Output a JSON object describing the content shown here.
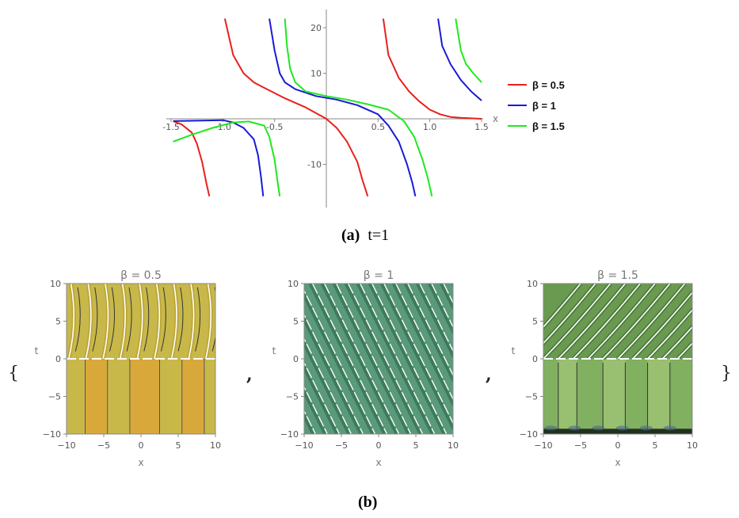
{
  "caption_a": {
    "label": "(a)",
    "text": "t=1"
  },
  "caption_b": {
    "label": "(b)"
  },
  "braces": {
    "open": "{",
    "close": "}",
    "separator": ","
  },
  "chart_data": [
    {
      "type": "line",
      "xlabel": "x",
      "ylabel": "",
      "xlim": [
        -1.5,
        1.5
      ],
      "ylim": [
        -18,
        22
      ],
      "xticks": [
        -1.5,
        -1.0,
        -0.5,
        0.5,
        1.0,
        1.5
      ],
      "xtick_labels": [
        "-1.5",
        "-1.0",
        "-0.5",
        "0.5",
        "1.0",
        "1.5"
      ],
      "yticks": [
        -10,
        10,
        20
      ],
      "ytick_labels": [
        "-10",
        "10",
        "20"
      ],
      "legend_position": "right",
      "series": [
        {
          "name": "β = 0.5",
          "color": "#e8201a",
          "values_description": "tangent-like branches",
          "branches": [
            [
              [
                -1.48,
                -0.5
              ],
              [
                -1.4,
                -1.2
              ],
              [
                -1.3,
                -3.0
              ],
              [
                -1.25,
                -5.5
              ],
              [
                -1.2,
                -9.5
              ],
              [
                -1.16,
                -14
              ],
              [
                -1.13,
                -17
              ]
            ],
            [
              [
                -0.98,
                22
              ],
              [
                -0.9,
                14
              ],
              [
                -0.8,
                10
              ],
              [
                -0.7,
                8
              ],
              [
                -0.6,
                6.8
              ],
              [
                -0.4,
                4.5
              ],
              [
                -0.2,
                2.5
              ],
              [
                0,
                0
              ],
              [
                0.1,
                -2
              ],
              [
                0.2,
                -5
              ],
              [
                0.3,
                -9.5
              ],
              [
                0.35,
                -13.5
              ],
              [
                0.4,
                -17
              ]
            ],
            [
              [
                0.55,
                22
              ],
              [
                0.6,
                14
              ],
              [
                0.7,
                9
              ],
              [
                0.8,
                6
              ],
              [
                0.9,
                3.8
              ],
              [
                1.0,
                2
              ],
              [
                1.1,
                1
              ],
              [
                1.2,
                0.4
              ],
              [
                1.3,
                0.2
              ],
              [
                1.5,
                0
              ]
            ]
          ]
        },
        {
          "name": "β = 1",
          "color": "#1a1ad6",
          "values_description": "tangent-like branches",
          "branches": [
            [
              [
                -1.48,
                -0.5
              ],
              [
                -1.2,
                -0.4
              ],
              [
                -1.0,
                -0.3
              ],
              [
                -0.9,
                -0.8
              ],
              [
                -0.8,
                -2
              ],
              [
                -0.7,
                -4.5
              ],
              [
                -0.66,
                -8
              ],
              [
                -0.63,
                -13
              ],
              [
                -0.61,
                -17
              ]
            ],
            [
              [
                -0.55,
                22
              ],
              [
                -0.5,
                15
              ],
              [
                -0.45,
                10
              ],
              [
                -0.4,
                8
              ],
              [
                -0.3,
                6.5
              ],
              [
                -0.1,
                5
              ],
              [
                0.1,
                4.2
              ],
              [
                0.3,
                3
              ],
              [
                0.5,
                1
              ],
              [
                0.6,
                -1.5
              ],
              [
                0.7,
                -5
              ],
              [
                0.78,
                -10
              ],
              [
                0.83,
                -14
              ],
              [
                0.86,
                -17
              ]
            ],
            [
              [
                1.08,
                22
              ],
              [
                1.12,
                16
              ],
              [
                1.2,
                12
              ],
              [
                1.3,
                8.5
              ],
              [
                1.4,
                6
              ],
              [
                1.5,
                4
              ]
            ]
          ]
        },
        {
          "name": "β = 1.5",
          "color": "#1fe81f",
          "values_description": "tangent-like branches",
          "branches": [
            [
              [
                -1.48,
                -5
              ],
              [
                -1.3,
                -3.5
              ],
              [
                -1.1,
                -2
              ],
              [
                -0.9,
                -0.8
              ],
              [
                -0.75,
                -0.6
              ],
              [
                -0.6,
                -1.5
              ],
              [
                -0.55,
                -4
              ],
              [
                -0.5,
                -9
              ],
              [
                -0.47,
                -14
              ],
              [
                -0.45,
                -17
              ]
            ],
            [
              [
                -0.4,
                22
              ],
              [
                -0.38,
                16
              ],
              [
                -0.35,
                11
              ],
              [
                -0.3,
                8
              ],
              [
                -0.2,
                6
              ],
              [
                0,
                5
              ],
              [
                0.2,
                4.2
              ],
              [
                0.4,
                3.2
              ],
              [
                0.6,
                2
              ],
              [
                0.75,
                -0.5
              ],
              [
                0.85,
                -4
              ],
              [
                0.93,
                -9
              ],
              [
                0.98,
                -13
              ],
              [
                1.02,
                -17
              ]
            ],
            [
              [
                1.25,
                22
              ],
              [
                1.3,
                15
              ],
              [
                1.35,
                12
              ],
              [
                1.42,
                10
              ],
              [
                1.5,
                8
              ]
            ]
          ]
        }
      ]
    },
    {
      "type": "heatmap",
      "title": "β = 0.5",
      "xlabel": "x",
      "ylabel": "t",
      "xlim": [
        -10,
        10
      ],
      "ylim": [
        -10,
        10
      ],
      "xticks": [
        -10,
        -5,
        0,
        5,
        10
      ],
      "yticks": [
        -10,
        -5,
        0,
        5,
        10
      ],
      "fill_colors": [
        "#c8b84a",
        "#d8a83a",
        "#e0c040",
        "#b8a030"
      ]
    },
    {
      "type": "heatmap",
      "title": "β = 1",
      "xlabel": "x",
      "ylabel": "t",
      "xlim": [
        -10,
        10
      ],
      "ylim": [
        -10,
        10
      ],
      "xticks": [
        -10,
        -5,
        0,
        5,
        10
      ],
      "yticks": [
        -10,
        -5,
        0,
        5,
        10
      ],
      "fill_colors": [
        "#5a9a7a",
        "#7ab89a",
        "#3c7a5c"
      ]
    },
    {
      "type": "heatmap",
      "title": "β = 1.5",
      "xlabel": "x",
      "ylabel": "t",
      "xlim": [
        -10,
        10
      ],
      "ylim": [
        -10,
        10
      ],
      "xticks": [
        -10,
        -5,
        0,
        5,
        10
      ],
      "yticks": [
        -10,
        -5,
        0,
        5,
        10
      ],
      "fill_colors": [
        "#80b060",
        "#98c070",
        "#6a9a50",
        "#203020"
      ]
    }
  ]
}
